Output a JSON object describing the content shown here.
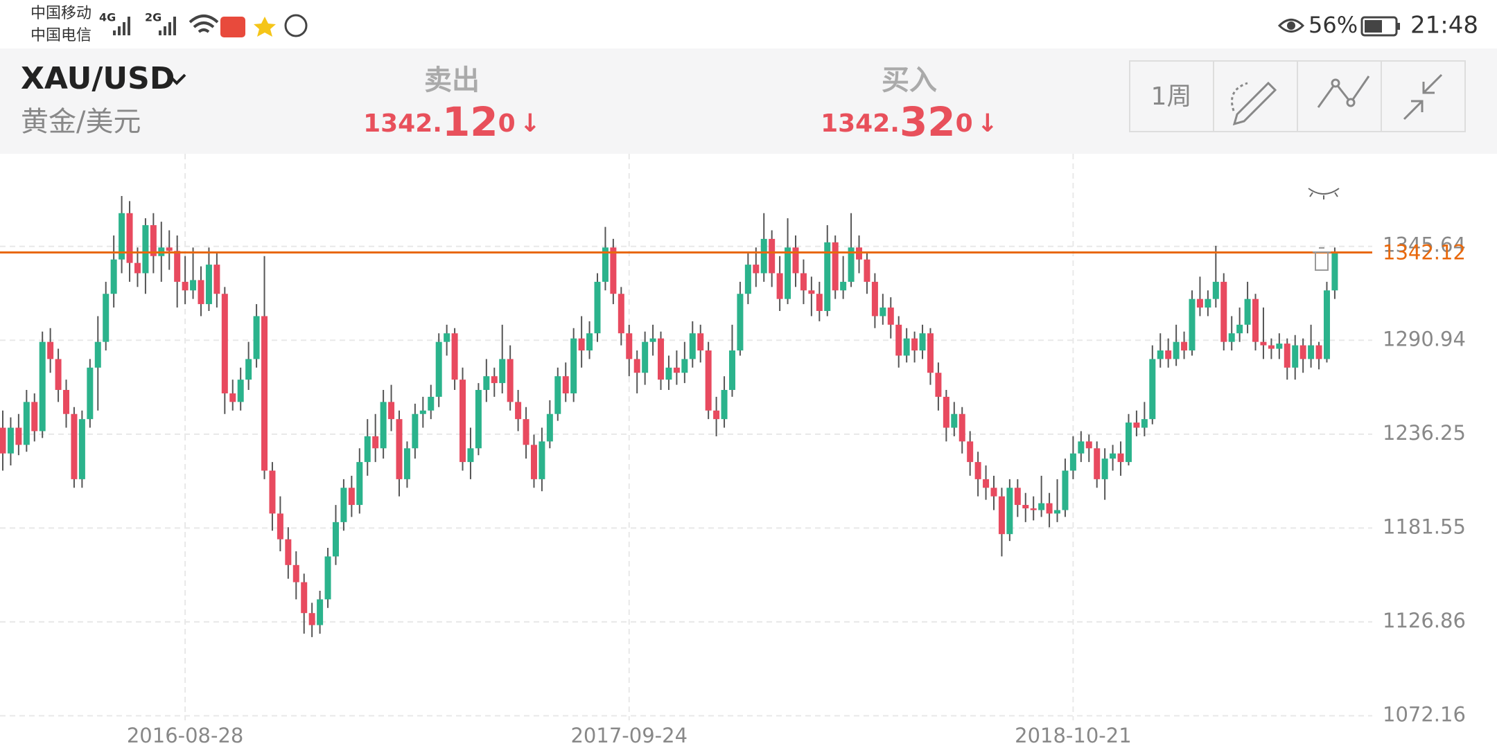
{
  "status_bar": {
    "carrier_1": "中国移动",
    "carrier_2": "中国电信",
    "network_1": "4G",
    "network_2": "2G",
    "battery": "56%",
    "time": "21:48"
  },
  "header": {
    "symbol": "XAU/USD",
    "symbol_name": "黄金/美元",
    "sell": {
      "label": "卖出",
      "price_prefix": "1342.",
      "price_main": "12",
      "price_suffix": "0",
      "arrow": "↓"
    },
    "buy": {
      "label": "买入",
      "price_prefix": "1342.",
      "price_main": "32",
      "price_suffix": "0",
      "arrow": "↓"
    },
    "period_button": "1周"
  },
  "chart_data": {
    "type": "candlestick",
    "categories": [
      null,
      null,
      null,
      null,
      null,
      null,
      null,
      null,
      null,
      null,
      null,
      null,
      null,
      null,
      null,
      null,
      null,
      null,
      null,
      null,
      null,
      null,
      null,
      "2016-08-28",
      null,
      null,
      null,
      null,
      null,
      null,
      null,
      null,
      null,
      null,
      null,
      null,
      null,
      null,
      null,
      null,
      null,
      null,
      null,
      null,
      null,
      null,
      null,
      null,
      null,
      null,
      null,
      null,
      null,
      null,
      null,
      null,
      null,
      null,
      null,
      null,
      null,
      null,
      null,
      null,
      null,
      null,
      null,
      null,
      null,
      null,
      null,
      null,
      null,
      null,
      null,
      null,
      null,
      null,
      null,
      "2017-09-24",
      null,
      null,
      null,
      null,
      null,
      null,
      null,
      null,
      null,
      null,
      null,
      null,
      null,
      null,
      null,
      null,
      null,
      null,
      null,
      null,
      null,
      null,
      null,
      null,
      null,
      null,
      null,
      null,
      null,
      null,
      null,
      null,
      null,
      null,
      null,
      null,
      null,
      null,
      null,
      null,
      null,
      null,
      null,
      null,
      null,
      null,
      null,
      null,
      null,
      null,
      null,
      null,
      null,
      null,
      null,
      "2018-10-21",
      null,
      null,
      null,
      null,
      null,
      null,
      null,
      null,
      null,
      null,
      null,
      null,
      null,
      null,
      null,
      null,
      null,
      null,
      null,
      null,
      null,
      null,
      null,
      null,
      null,
      null,
      null,
      null,
      null,
      null,
      null,
      null,
      null
    ],
    "open": [
      1240,
      1225,
      1240,
      1230,
      1255,
      1238,
      1290,
      1280,
      1262,
      1248,
      1210,
      1245,
      1275,
      1290,
      1318,
      1338,
      1365,
      1336,
      1330,
      1358,
      1340,
      1345,
      1343,
      1325,
      1320,
      1326,
      1312,
      1335,
      1318,
      1260,
      1255,
      1268,
      1280,
      1305,
      1215,
      1190,
      1175,
      1160,
      1150,
      1132,
      1125,
      1140,
      1165,
      1185,
      1205,
      1195,
      1220,
      1235,
      1228,
      1255,
      1245,
      1210,
      1228,
      1248,
      1250,
      1258,
      1290,
      1295,
      1268,
      1220,
      1228,
      1262,
      1270,
      1266,
      1280,
      1255,
      1245,
      1230,
      1210,
      1232,
      1248,
      1270,
      1260,
      1292,
      1285,
      1295,
      1325,
      1345,
      1318,
      1295,
      1280,
      1272,
      1290,
      1292,
      1268,
      1275,
      1272,
      1280,
      1295,
      1285,
      1250,
      1245,
      1262,
      1285,
      1318,
      1335,
      1330,
      1350,
      1330,
      1315,
      1345,
      1330,
      1320,
      1318,
      1308,
      1348,
      1320,
      1325,
      1345,
      1338,
      1325,
      1305,
      1310,
      1300,
      1282,
      1292,
      1285,
      1295,
      1272,
      1258,
      1240,
      1248,
      1232,
      1220,
      1210,
      1205,
      1200,
      1178,
      1205,
      1195,
      1193,
      1192,
      1196,
      1190,
      1192,
      1215,
      1225,
      1232,
      1228,
      1210,
      1222,
      1225,
      1220,
      1243,
      1240,
      1245,
      1280,
      1285,
      1280,
      1290,
      1285,
      1315,
      1310,
      1315,
      1325,
      1290,
      1295,
      1300,
      1315,
      1290,
      1288,
      1286,
      1289,
      1275,
      1288,
      1280,
      1288,
      1280,
      1320
    ],
    "high": [
      1250,
      1246,
      1248,
      1262,
      1260,
      1296,
      1298,
      1286,
      1268,
      1252,
      1250,
      1280,
      1305,
      1325,
      1352,
      1375,
      1372,
      1345,
      1362,
      1365,
      1360,
      1355,
      1352,
      1340,
      1345,
      1334,
      1345,
      1342,
      1322,
      1268,
      1275,
      1290,
      1312,
      1340,
      1220,
      1200,
      1182,
      1168,
      1155,
      1138,
      1145,
      1170,
      1195,
      1210,
      1212,
      1228,
      1245,
      1248,
      1262,
      1265,
      1250,
      1232,
      1254,
      1258,
      1265,
      1295,
      1300,
      1298,
      1275,
      1240,
      1266,
      1280,
      1275,
      1300,
      1288,
      1262,
      1252,
      1236,
      1240,
      1256,
      1275,
      1278,
      1298,
      1305,
      1302,
      1330,
      1357,
      1350,
      1322,
      1300,
      1285,
      1296,
      1300,
      1296,
      1282,
      1285,
      1290,
      1302,
      1300,
      1290,
      1258,
      1270,
      1300,
      1325,
      1342,
      1345,
      1365,
      1355,
      1340,
      1362,
      1352,
      1338,
      1328,
      1325,
      1358,
      1352,
      1340,
      1365,
      1352,
      1342,
      1330,
      1318,
      1316,
      1305,
      1298,
      1296,
      1300,
      1298,
      1278,
      1262,
      1255,
      1252,
      1238,
      1226,
      1218,
      1212,
      1205,
      1210,
      1210,
      1202,
      1200,
      1212,
      1202,
      1210,
      1222,
      1235,
      1238,
      1236,
      1232,
      1228,
      1230,
      1232,
      1248,
      1250,
      1255,
      1288,
      1295,
      1292,
      1300,
      1296,
      1320,
      1328,
      1320,
      1346,
      1330,
      1305,
      1310,
      1325,
      1318,
      1310,
      1292,
      1295,
      1292,
      1294,
      1292,
      1300,
      1290,
      1325,
      1345
    ],
    "low": [
      1215,
      1218,
      1224,
      1226,
      1232,
      1234,
      1272,
      1255,
      1240,
      1205,
      1205,
      1240,
      1250,
      1285,
      1310,
      1330,
      1325,
      1322,
      1318,
      1330,
      1325,
      1332,
      1310,
      1312,
      1315,
      1305,
      1308,
      1310,
      1248,
      1250,
      1250,
      1262,
      1275,
      1210,
      1180,
      1168,
      1152,
      1140,
      1120,
      1118,
      1120,
      1135,
      1160,
      1180,
      1188,
      1190,
      1212,
      1220,
      1222,
      1238,
      1200,
      1205,
      1222,
      1240,
      1245,
      1252,
      1282,
      1262,
      1215,
      1210,
      1224,
      1255,
      1258,
      1260,
      1250,
      1238,
      1222,
      1205,
      1203,
      1228,
      1244,
      1255,
      1255,
      1275,
      1280,
      1290,
      1320,
      1312,
      1288,
      1270,
      1260,
      1265,
      1282,
      1262,
      1262,
      1265,
      1266,
      1275,
      1278,
      1245,
      1235,
      1240,
      1258,
      1282,
      1312,
      1322,
      1325,
      1322,
      1308,
      1312,
      1322,
      1312,
      1305,
      1302,
      1305,
      1315,
      1315,
      1322,
      1330,
      1318,
      1298,
      1300,
      1292,
      1275,
      1278,
      1278,
      1280,
      1265,
      1250,
      1232,
      1235,
      1225,
      1212,
      1200,
      1198,
      1192,
      1165,
      1174,
      1188,
      1185,
      1186,
      1188,
      1182,
      1185,
      1188,
      1210,
      1220,
      1220,
      1205,
      1198,
      1215,
      1212,
      1218,
      1235,
      1235,
      1242,
      1275,
      1275,
      1276,
      1280,
      1282,
      1305,
      1305,
      1310,
      1285,
      1285,
      1290,
      1295,
      1285,
      1280,
      1280,
      1280,
      1268,
      1268,
      1272,
      1275,
      1274,
      1278,
      1315
    ],
    "close": [
      1225,
      1240,
      1230,
      1255,
      1238,
      1290,
      1280,
      1262,
      1248,
      1210,
      1245,
      1275,
      1290,
      1318,
      1338,
      1365,
      1336,
      1330,
      1358,
      1340,
      1345,
      1343,
      1325,
      1320,
      1326,
      1312,
      1335,
      1318,
      1260,
      1255,
      1268,
      1280,
      1305,
      1215,
      1190,
      1175,
      1160,
      1150,
      1132,
      1125,
      1140,
      1165,
      1185,
      1205,
      1195,
      1220,
      1235,
      1228,
      1255,
      1245,
      1210,
      1228,
      1248,
      1250,
      1258,
      1290,
      1295,
      1268,
      1220,
      1228,
      1262,
      1270,
      1266,
      1280,
      1255,
      1245,
      1230,
      1210,
      1232,
      1248,
      1270,
      1260,
      1292,
      1285,
      1295,
      1325,
      1345,
      1318,
      1295,
      1280,
      1272,
      1290,
      1292,
      1268,
      1275,
      1272,
      1280,
      1295,
      1285,
      1250,
      1245,
      1262,
      1285,
      1318,
      1335,
      1330,
      1350,
      1330,
      1315,
      1345,
      1330,
      1320,
      1318,
      1308,
      1348,
      1320,
      1325,
      1345,
      1338,
      1325,
      1305,
      1310,
      1300,
      1282,
      1292,
      1285,
      1295,
      1272,
      1258,
      1240,
      1248,
      1232,
      1220,
      1210,
      1205,
      1200,
      1178,
      1205,
      1195,
      1193,
      1192,
      1196,
      1190,
      1192,
      1215,
      1225,
      1232,
      1228,
      1210,
      1222,
      1225,
      1220,
      1243,
      1240,
      1245,
      1280,
      1285,
      1280,
      1290,
      1285,
      1315,
      1310,
      1315,
      1325,
      1290,
      1295,
      1300,
      1315,
      1290,
      1288,
      1286,
      1289,
      1275,
      1288,
      1280,
      1288,
      1280,
      1320,
      1342.12
    ],
    "up_color": "#2bb38c",
    "down_color": "#e84a5f",
    "ylim": [
      1072.16,
      1399.6
    ],
    "yticks": [
      1072.16,
      1126.86,
      1181.55,
      1236.25,
      1290.94,
      1345.64
    ],
    "grid": true,
    "current_price": 1342.12,
    "current_price_color": "#e8680c"
  }
}
